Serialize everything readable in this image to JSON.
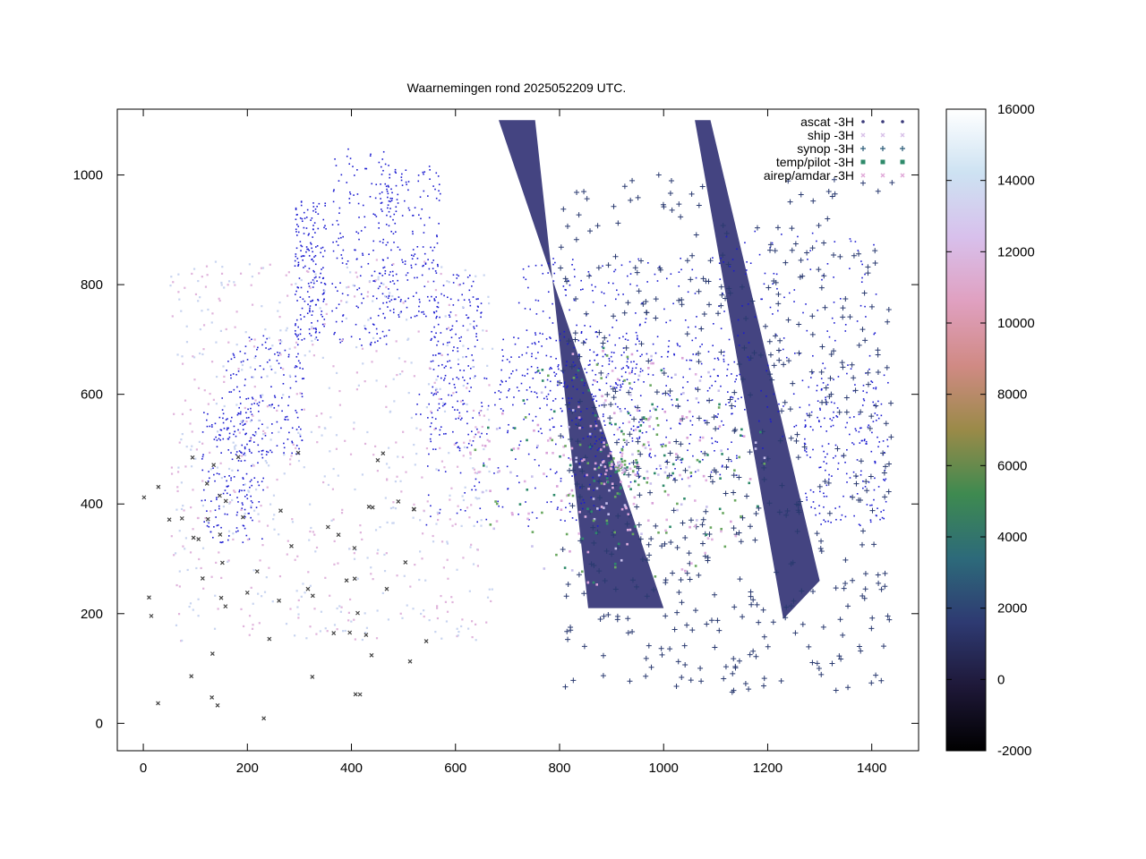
{
  "chart_data": {
    "type": "scatter",
    "title": "Waarnemingen rond 2025052209 UTC.",
    "xlim": [
      -50,
      1490
    ],
    "ylim": [
      -50,
      1120
    ],
    "x_ticks": [
      "0",
      "200",
      "400",
      "600",
      "800",
      "1000",
      "1200",
      "1400"
    ],
    "y_ticks": [
      "0",
      "200",
      "400",
      "600",
      "800",
      "1000"
    ],
    "grid": false,
    "legend_position": "top-right",
    "series": [
      {
        "name": "ascat -3H",
        "marker": "dot",
        "color": "#3a3a7a"
      },
      {
        "name": "ship -3H",
        "marker": "x",
        "color": "#d8c0e8"
      },
      {
        "name": "synop -3H",
        "marker": "plus",
        "color": "#2a5a78"
      },
      {
        "name": "temp/pilot -3H",
        "marker": "square",
        "color": "#2e8a6a"
      },
      {
        "name": "airep/amdar -3H",
        "marker": "x",
        "color": "#e0a8d8"
      }
    ],
    "colorbar": {
      "range": [
        -2000,
        16000
      ],
      "ticks": [
        "16000",
        "14000",
        "12000",
        "10000",
        "8000",
        "6000",
        "4000",
        "2000",
        "0",
        "-2000"
      ],
      "stops": [
        "#000000",
        "#1e1838",
        "#2e3a72",
        "#2d6a7a",
        "#3e8a50",
        "#9a8a48",
        "#d08a84",
        "#e0a0c0",
        "#d8c0ec",
        "#cde2f2",
        "#ffffff"
      ]
    },
    "scan_swaths": [
      {
        "x": [
          683,
          753,
          855,
          1000
        ],
        "y": [
          1100,
          1100,
          210,
          210
        ]
      },
      {
        "x": [
          1060,
          1090,
          1300,
          1230
        ],
        "y": [
          1100,
          1100,
          260,
          190
        ]
      }
    ],
    "land_color": "#1a1ad0"
  }
}
